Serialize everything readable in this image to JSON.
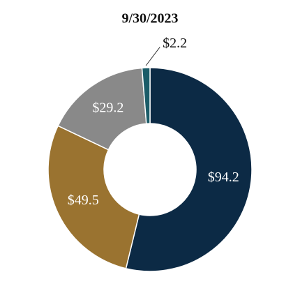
{
  "chart_data": {
    "type": "donut",
    "title": "9/30/2023",
    "values": [
      94.2,
      49.5,
      29.2,
      2.2
    ],
    "value_labels": [
      "$94.2",
      "$49.5",
      "$29.2",
      "$2.2"
    ],
    "colors": [
      "#0c2a45",
      "#9a7330",
      "#898989",
      "#1b5c68"
    ]
  }
}
